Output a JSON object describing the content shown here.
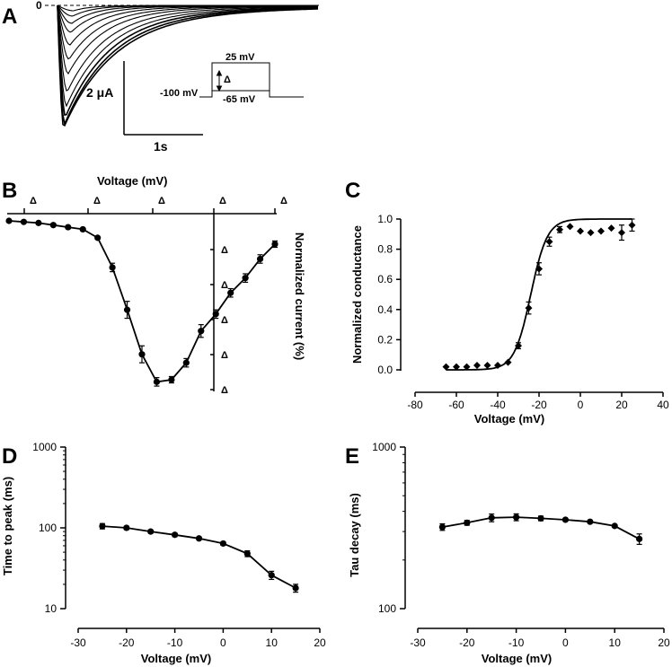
{
  "panels": {
    "A": {
      "label": "A",
      "zero_label": "0",
      "scale_current": "2 μA",
      "scale_time": "1s",
      "protocol": {
        "hold": "-100 mV",
        "top": "25 mV",
        "bottom": "-65 mV",
        "delta": "Δ"
      }
    },
    "B": {
      "label": "B"
    },
    "C": {
      "label": "C"
    },
    "D": {
      "label": "D"
    },
    "E": {
      "label": "E"
    }
  },
  "chart_data": [
    {
      "id": "B",
      "type": "line",
      "xlabel": "Voltage (mV)",
      "ylabel": "Normalized current (%)",
      "x_tick_labels": [
        "Δ",
        "Δ",
        "Δ",
        "Δ",
        "Δ"
      ],
      "y_tick_labels": [
        "Δ",
        "Δ",
        "Δ",
        "Δ",
        "Δ"
      ],
      "x": [
        -65,
        -60,
        -55,
        -50,
        -45,
        -40,
        -35,
        -30,
        -25,
        -20,
        -15,
        -10,
        -5,
        0,
        5,
        10,
        15,
        20,
        25
      ],
      "y": [
        0,
        -0.5,
        -1,
        -2,
        -3,
        -4,
        -8,
        -22,
        -42,
        -63,
        -76,
        -75,
        -67,
        -52,
        -44,
        -34,
        -27,
        -18,
        -11
      ],
      "err": [
        0,
        0,
        0,
        0,
        0,
        0,
        0,
        2,
        4,
        4,
        2,
        1.5,
        2,
        3,
        2,
        2,
        2,
        2,
        1.5
      ],
      "xlim": [
        -66,
        26
      ],
      "ylim": [
        -88,
        0
      ]
    },
    {
      "id": "C",
      "type": "scatter",
      "xlabel": "Voltage (mV)",
      "ylabel": "Normalized conductance",
      "xlim": [
        -80,
        40
      ],
      "ylim": [
        0,
        1.0
      ],
      "x_ticks": [
        -80,
        -60,
        -40,
        -20,
        0,
        20,
        40
      ],
      "y_ticks": [
        0.0,
        0.2,
        0.4,
        0.6,
        0.8,
        1.0
      ],
      "x": [
        -65,
        -60,
        -55,
        -50,
        -45,
        -40,
        -35,
        -30,
        -25,
        -20,
        -15,
        -10,
        -5,
        0,
        5,
        10,
        15,
        20,
        25
      ],
      "y": [
        0.02,
        0.02,
        0.02,
        0.03,
        0.03,
        0.03,
        0.05,
        0.16,
        0.41,
        0.67,
        0.85,
        0.93,
        0.95,
        0.92,
        0.91,
        0.92,
        0.94,
        0.91,
        0.96
      ],
      "err": [
        0,
        0,
        0,
        0,
        0,
        0,
        0,
        0.02,
        0.04,
        0.04,
        0.03,
        0.02,
        0,
        0,
        0,
        0,
        0,
        0.05,
        0.04
      ],
      "fit": {
        "type": "boltzmann",
        "v_half": -24,
        "slope": 4,
        "max": 1.0
      }
    },
    {
      "id": "D",
      "type": "line",
      "xlabel": "Voltage (mV)",
      "ylabel": "Time to peak (ms)",
      "yscale": "log",
      "xlim": [
        -30,
        20
      ],
      "ylim": [
        10,
        1000
      ],
      "x_ticks": [
        -30,
        -20,
        -10,
        0,
        10,
        20
      ],
      "y_ticks": [
        10,
        100,
        1000
      ],
      "x": [
        -25,
        -20,
        -15,
        -10,
        -5,
        0,
        5,
        10,
        15
      ],
      "y": [
        105,
        100,
        90,
        82,
        74,
        64,
        48,
        26,
        18
      ],
      "err": [
        8,
        5,
        4,
        4,
        3,
        3,
        4,
        3,
        2
      ]
    },
    {
      "id": "E",
      "type": "line",
      "xlabel": "Voltage (mV)",
      "ylabel": "Tau decay (ms)",
      "yscale": "log",
      "xlim": [
        -30,
        20
      ],
      "ylim": [
        100,
        1000
      ],
      "x_ticks": [
        -30,
        -20,
        -10,
        0,
        10,
        20
      ],
      "y_ticks": [
        100,
        1000
      ],
      "x": [
        -25,
        -20,
        -15,
        -10,
        -5,
        0,
        5,
        10,
        15
      ],
      "y": [
        320,
        340,
        365,
        368,
        362,
        355,
        345,
        325,
        270
      ],
      "err": [
        15,
        12,
        20,
        18,
        12,
        6,
        6,
        6,
        20
      ]
    }
  ]
}
